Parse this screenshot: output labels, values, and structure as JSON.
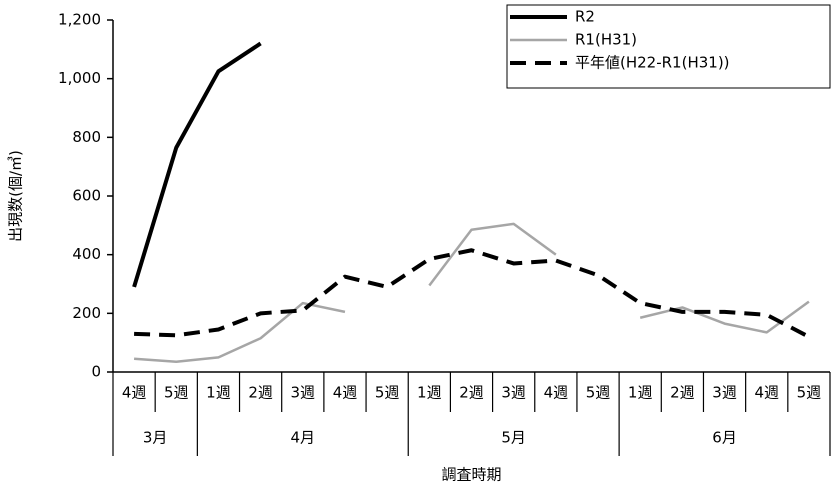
{
  "chart_data": {
    "type": "line",
    "y_label": "出現数(個/㎥)",
    "x_label": "調査時期",
    "categories": [
      "4週",
      "5週",
      "1週",
      "2週",
      "3週",
      "4週",
      "5週",
      "1週",
      "2週",
      "3週",
      "4週",
      "5週",
      "1週",
      "2週",
      "3週",
      "4週",
      "5週"
    ],
    "groups": [
      {
        "label": "3月",
        "count": 2
      },
      {
        "label": "4月",
        "count": 5
      },
      {
        "label": "5月",
        "count": 5
      },
      {
        "label": "6月",
        "count": 5
      }
    ],
    "series": [
      {
        "name": "R2",
        "color": "#000000",
        "width": 4,
        "dash": "none",
        "values": [
          290,
          765,
          1025,
          1120,
          null,
          null,
          null,
          null,
          null,
          null,
          null,
          null,
          null,
          null,
          null,
          null,
          null
        ]
      },
      {
        "name": "R1(H31)",
        "color": "#a6a6a6",
        "width": 2.5,
        "dash": "none",
        "values": [
          45,
          35,
          50,
          115,
          235,
          205,
          null,
          295,
          485,
          505,
          400,
          null,
          185,
          220,
          165,
          135,
          240
        ]
      },
      {
        "name": "平年値(H22-R1(H31))",
        "color": "#000000",
        "width": 4,
        "dash": "16,9",
        "values": [
          130,
          125,
          145,
          200,
          210,
          325,
          290,
          385,
          415,
          370,
          380,
          330,
          235,
          205,
          205,
          195,
          120
        ]
      }
    ],
    "ylim": [
      0,
      1200
    ],
    "yticks": [
      0,
      200,
      400,
      600,
      800,
      {
        "value": 1000,
        "label": "1,000"
      },
      {
        "value": 1200,
        "label": "1,200"
      }
    ],
    "legend": "top-right"
  }
}
